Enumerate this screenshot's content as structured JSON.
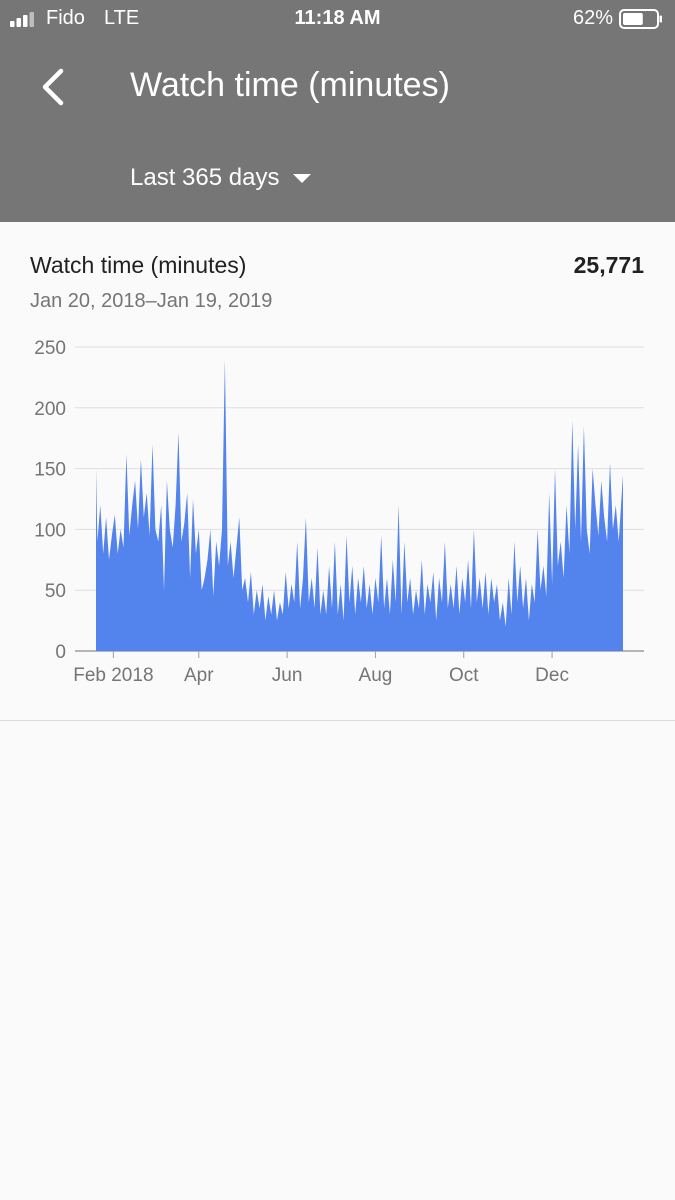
{
  "status_bar": {
    "carrier": "Fido",
    "network": "LTE",
    "time": "11:18 AM",
    "battery_percent": "62%",
    "battery_level": 0.62
  },
  "header": {
    "title": "Watch time (minutes)",
    "date_range_selector": "Last 365 days",
    "back_icon": "chevron-left-icon"
  },
  "card": {
    "metric_label": "Watch time (minutes)",
    "metric_total": "25,771",
    "date_range": "Jan 20, 2018–Jan 19, 2019"
  },
  "colors": {
    "header_bg": "#767676",
    "series_fill": "#5383ec",
    "gridline": "#dedede"
  },
  "chart_data": {
    "type": "area",
    "x_start": "2018-01-20",
    "x_end": "2019-01-19",
    "ylim": [
      0,
      250
    ],
    "yticks": [
      0,
      50,
      100,
      150,
      200,
      250
    ],
    "xticks": [
      {
        "label": "Feb 2018",
        "date": "2018-02-01"
      },
      {
        "label": "Apr",
        "date": "2018-04-01"
      },
      {
        "label": "Jun",
        "date": "2018-06-01"
      },
      {
        "label": "Aug",
        "date": "2018-08-01"
      },
      {
        "label": "Oct",
        "date": "2018-10-01"
      },
      {
        "label": "Dec",
        "date": "2018-12-01"
      }
    ],
    "grid": true,
    "points": [
      [
        "2018-01-20",
        150
      ],
      [
        "2018-01-21",
        90
      ],
      [
        "2018-01-23",
        120
      ],
      [
        "2018-01-25",
        80
      ],
      [
        "2018-01-27",
        110
      ],
      [
        "2018-01-29",
        75
      ],
      [
        "2018-01-31",
        95
      ],
      [
        "2018-02-02",
        112
      ],
      [
        "2018-02-04",
        80
      ],
      [
        "2018-02-06",
        100
      ],
      [
        "2018-02-08",
        85
      ],
      [
        "2018-02-10",
        162
      ],
      [
        "2018-02-12",
        95
      ],
      [
        "2018-02-14",
        120
      ],
      [
        "2018-02-16",
        140
      ],
      [
        "2018-02-18",
        100
      ],
      [
        "2018-02-20",
        158
      ],
      [
        "2018-02-22",
        110
      ],
      [
        "2018-02-24",
        130
      ],
      [
        "2018-02-26",
        95
      ],
      [
        "2018-02-28",
        170
      ],
      [
        "2018-03-02",
        100
      ],
      [
        "2018-03-04",
        90
      ],
      [
        "2018-03-06",
        120
      ],
      [
        "2018-03-08",
        50
      ],
      [
        "2018-03-10",
        140
      ],
      [
        "2018-03-12",
        100
      ],
      [
        "2018-03-14",
        85
      ],
      [
        "2018-03-16",
        120
      ],
      [
        "2018-03-18",
        180
      ],
      [
        "2018-03-20",
        90
      ],
      [
        "2018-03-22",
        105
      ],
      [
        "2018-03-24",
        130
      ],
      [
        "2018-03-26",
        60
      ],
      [
        "2018-03-28",
        125
      ],
      [
        "2018-03-30",
        80
      ],
      [
        "2018-04-01",
        100
      ],
      [
        "2018-04-03",
        50
      ],
      [
        "2018-04-05",
        60
      ],
      [
        "2018-04-07",
        75
      ],
      [
        "2018-04-09",
        100
      ],
      [
        "2018-04-11",
        45
      ],
      [
        "2018-04-13",
        90
      ],
      [
        "2018-04-15",
        70
      ],
      [
        "2018-04-17",
        100
      ],
      [
        "2018-04-19",
        240
      ],
      [
        "2018-04-21",
        70
      ],
      [
        "2018-04-23",
        90
      ],
      [
        "2018-04-25",
        60
      ],
      [
        "2018-04-27",
        85
      ],
      [
        "2018-04-29",
        110
      ],
      [
        "2018-05-01",
        50
      ],
      [
        "2018-05-03",
        60
      ],
      [
        "2018-05-05",
        40
      ],
      [
        "2018-05-07",
        65
      ],
      [
        "2018-05-09",
        30
      ],
      [
        "2018-05-11",
        50
      ],
      [
        "2018-05-13",
        35
      ],
      [
        "2018-05-15",
        55
      ],
      [
        "2018-05-17",
        25
      ],
      [
        "2018-05-19",
        45
      ],
      [
        "2018-05-21",
        30
      ],
      [
        "2018-05-23",
        50
      ],
      [
        "2018-05-25",
        25
      ],
      [
        "2018-05-27",
        40
      ],
      [
        "2018-05-29",
        30
      ],
      [
        "2018-05-31",
        65
      ],
      [
        "2018-06-02",
        35
      ],
      [
        "2018-06-04",
        55
      ],
      [
        "2018-06-06",
        40
      ],
      [
        "2018-06-08",
        90
      ],
      [
        "2018-06-10",
        35
      ],
      [
        "2018-06-12",
        60
      ],
      [
        "2018-06-14",
        110
      ],
      [
        "2018-06-16",
        40
      ],
      [
        "2018-06-18",
        60
      ],
      [
        "2018-06-20",
        35
      ],
      [
        "2018-06-22",
        85
      ],
      [
        "2018-06-24",
        30
      ],
      [
        "2018-06-26",
        50
      ],
      [
        "2018-06-28",
        30
      ],
      [
        "2018-06-30",
        70
      ],
      [
        "2018-07-02",
        35
      ],
      [
        "2018-07-04",
        90
      ],
      [
        "2018-07-06",
        30
      ],
      [
        "2018-07-08",
        55
      ],
      [
        "2018-07-10",
        25
      ],
      [
        "2018-07-12",
        95
      ],
      [
        "2018-07-14",
        40
      ],
      [
        "2018-07-16",
        70
      ],
      [
        "2018-07-18",
        30
      ],
      [
        "2018-07-20",
        60
      ],
      [
        "2018-07-22",
        40
      ],
      [
        "2018-07-24",
        70
      ],
      [
        "2018-07-26",
        35
      ],
      [
        "2018-07-28",
        55
      ],
      [
        "2018-07-30",
        30
      ],
      [
        "2018-08-01",
        60
      ],
      [
        "2018-08-03",
        40
      ],
      [
        "2018-08-05",
        95
      ],
      [
        "2018-08-07",
        35
      ],
      [
        "2018-08-09",
        60
      ],
      [
        "2018-08-11",
        30
      ],
      [
        "2018-08-13",
        75
      ],
      [
        "2018-08-15",
        40
      ],
      [
        "2018-08-17",
        120
      ],
      [
        "2018-08-19",
        30
      ],
      [
        "2018-08-21",
        90
      ],
      [
        "2018-08-23",
        40
      ],
      [
        "2018-08-25",
        60
      ],
      [
        "2018-08-27",
        30
      ],
      [
        "2018-08-29",
        50
      ],
      [
        "2018-08-31",
        35
      ],
      [
        "2018-09-02",
        75
      ],
      [
        "2018-09-04",
        30
      ],
      [
        "2018-09-06",
        55
      ],
      [
        "2018-09-08",
        40
      ],
      [
        "2018-09-10",
        65
      ],
      [
        "2018-09-12",
        25
      ],
      [
        "2018-09-14",
        60
      ],
      [
        "2018-09-16",
        40
      ],
      [
        "2018-09-18",
        90
      ],
      [
        "2018-09-20",
        35
      ],
      [
        "2018-09-22",
        55
      ],
      [
        "2018-09-24",
        35
      ],
      [
        "2018-09-26",
        70
      ],
      [
        "2018-09-28",
        30
      ],
      [
        "2018-09-30",
        60
      ],
      [
        "2018-10-02",
        40
      ],
      [
        "2018-10-04",
        75
      ],
      [
        "2018-10-06",
        35
      ],
      [
        "2018-10-08",
        100
      ],
      [
        "2018-10-10",
        40
      ],
      [
        "2018-10-12",
        60
      ],
      [
        "2018-10-14",
        35
      ],
      [
        "2018-10-16",
        65
      ],
      [
        "2018-10-18",
        30
      ],
      [
        "2018-10-20",
        60
      ],
      [
        "2018-10-22",
        40
      ],
      [
        "2018-10-24",
        55
      ],
      [
        "2018-10-26",
        25
      ],
      [
        "2018-10-28",
        40
      ],
      [
        "2018-10-30",
        20
      ],
      [
        "2018-11-01",
        60
      ],
      [
        "2018-11-03",
        30
      ],
      [
        "2018-11-05",
        90
      ],
      [
        "2018-11-07",
        40
      ],
      [
        "2018-11-09",
        70
      ],
      [
        "2018-11-11",
        35
      ],
      [
        "2018-11-13",
        60
      ],
      [
        "2018-11-15",
        25
      ],
      [
        "2018-11-17",
        55
      ],
      [
        "2018-11-19",
        40
      ],
      [
        "2018-11-21",
        100
      ],
      [
        "2018-11-23",
        50
      ],
      [
        "2018-11-25",
        70
      ],
      [
        "2018-11-27",
        45
      ],
      [
        "2018-11-29",
        130
      ],
      [
        "2018-12-01",
        55
      ],
      [
        "2018-12-03",
        150
      ],
      [
        "2018-12-05",
        70
      ],
      [
        "2018-12-07",
        90
      ],
      [
        "2018-12-09",
        60
      ],
      [
        "2018-12-11",
        120
      ],
      [
        "2018-12-13",
        80
      ],
      [
        "2018-12-15",
        190
      ],
      [
        "2018-12-17",
        100
      ],
      [
        "2018-12-19",
        170
      ],
      [
        "2018-12-21",
        90
      ],
      [
        "2018-12-23",
        185
      ],
      [
        "2018-12-25",
        100
      ],
      [
        "2018-12-27",
        80
      ],
      [
        "2018-12-29",
        150
      ],
      [
        "2018-12-31",
        120
      ],
      [
        "2019-01-02",
        95
      ],
      [
        "2019-01-04",
        140
      ],
      [
        "2019-01-06",
        110
      ],
      [
        "2019-01-08",
        90
      ],
      [
        "2019-01-10",
        155
      ],
      [
        "2019-01-12",
        100
      ],
      [
        "2019-01-14",
        120
      ],
      [
        "2019-01-16",
        90
      ],
      [
        "2019-01-19",
        145
      ]
    ]
  }
}
